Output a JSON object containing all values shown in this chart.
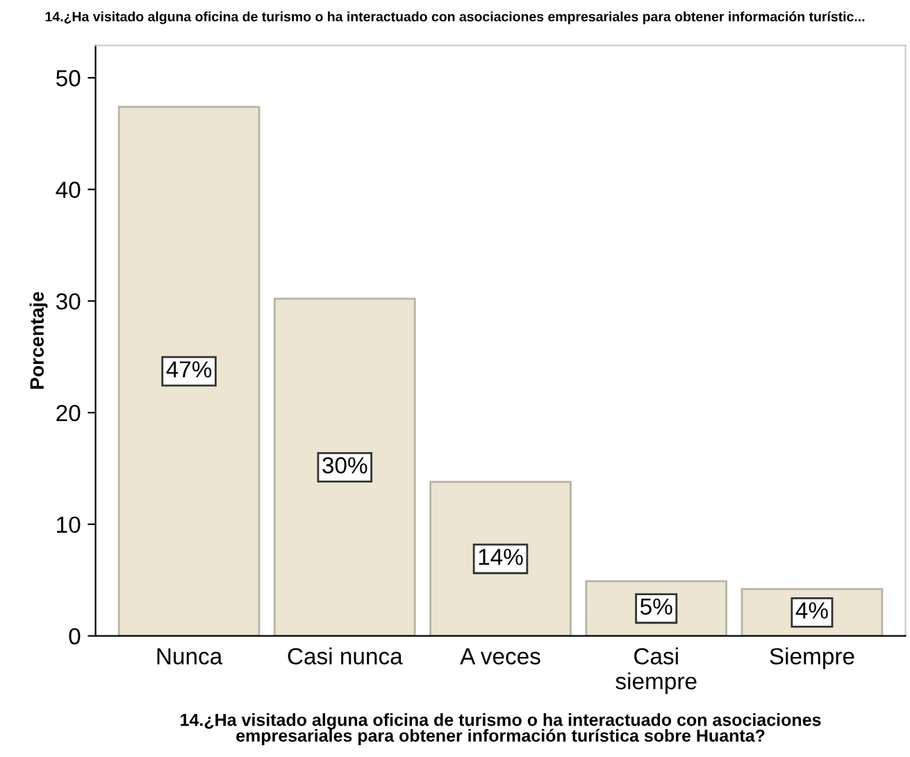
{
  "chart_data": {
    "type": "bar",
    "title": "14.¿Ha visitado alguna oficina de turismo o ha interactuado con asociaciones empresariales para obtener información turístic...",
    "xlabel": "14.¿Ha visitado alguna oficina de turismo o ha interactuado con asociaciones\nempresariales para obtener información turística sobre Huanta?",
    "ylabel": "Porcentaje",
    "categories": [
      "Nunca",
      "Casi nunca",
      "A veces",
      "Casi\nsiempre",
      "Siempre"
    ],
    "values": [
      47.4,
      30.2,
      13.8,
      4.9,
      4.2
    ],
    "value_labels": [
      "47%",
      "30%",
      "14%",
      "5%",
      "4%"
    ],
    "color": "#ebe5d1",
    "ylim": [
      0,
      52.9
    ],
    "yticks": [
      0,
      10,
      20,
      30,
      40,
      50
    ],
    "grid": false
  }
}
